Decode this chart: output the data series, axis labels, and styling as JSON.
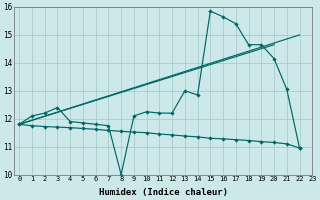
{
  "background_color": "#cce8e8",
  "grid_color": "#aacccc",
  "line_color": "#006666",
  "zigzag": {
    "x": [
      0,
      1,
      2,
      3,
      4,
      5,
      6,
      7,
      8,
      9,
      10,
      11,
      12,
      13,
      14,
      15,
      16,
      17,
      18,
      19,
      20,
      21,
      22
    ],
    "y": [
      11.8,
      12.1,
      12.2,
      12.4,
      11.9,
      11.85,
      11.8,
      11.75,
      10.0,
      12.1,
      12.25,
      12.2,
      12.2,
      13.0,
      12.85,
      15.85,
      15.65,
      15.4,
      14.65,
      14.65,
      14.15,
      13.05,
      10.95
    ]
  },
  "declining": {
    "x": [
      0,
      1,
      2,
      3,
      4,
      5,
      6,
      7,
      8,
      9,
      10,
      11,
      12,
      13,
      14,
      15,
      16,
      17,
      18,
      19,
      20,
      21,
      22
    ],
    "y": [
      11.8,
      11.75,
      11.72,
      11.7,
      11.68,
      11.65,
      11.62,
      11.58,
      11.55,
      11.52,
      11.5,
      11.45,
      11.42,
      11.38,
      11.35,
      11.3,
      11.28,
      11.25,
      11.22,
      11.18,
      11.15,
      11.1,
      10.95
    ]
  },
  "diag1": {
    "x": [
      0,
      22
    ],
    "y": [
      11.8,
      15.0
    ]
  },
  "diag2": {
    "x": [
      0,
      20
    ],
    "y": [
      11.8,
      14.65
    ]
  },
  "ylim": [
    10,
    16
  ],
  "xlim": [
    -0.4,
    23
  ],
  "yticks": [
    10,
    11,
    12,
    13,
    14,
    15,
    16
  ],
  "xticks": [
    0,
    1,
    2,
    3,
    4,
    5,
    6,
    7,
    8,
    9,
    10,
    11,
    12,
    13,
    14,
    15,
    16,
    17,
    18,
    19,
    20,
    21,
    22,
    23
  ],
  "xlabel": "Humidex (Indice chaleur)"
}
